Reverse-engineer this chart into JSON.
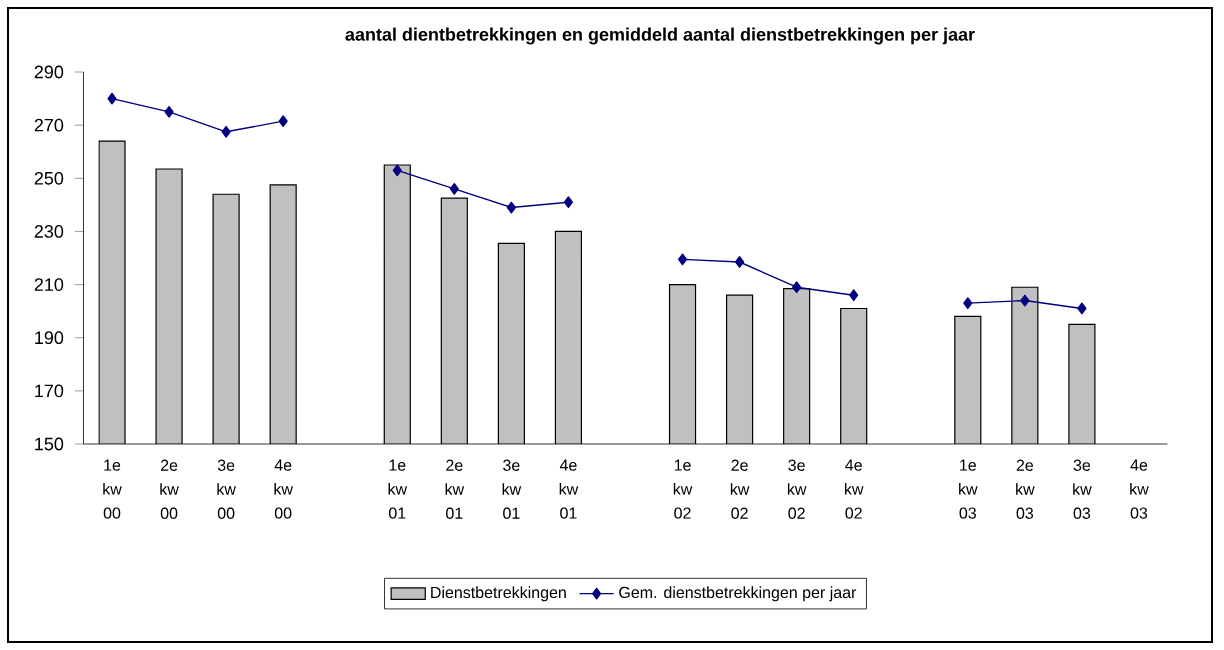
{
  "chart_data": {
    "type": "bar",
    "title": "aantal dientbetrekkingen en gemiddeld aantal dienstbetrekkingen per jaar",
    "categories": [
      "1e kw 00",
      "2e kw 00",
      "3e kw 00",
      "4e kw 00",
      null,
      "1e kw 01",
      "2e kw 01",
      "3e kw 01",
      "4e kw 01",
      null,
      "1e kw 02",
      "2e kw 02",
      "3e kw 02",
      "4e kw 02",
      null,
      "1e kw 03",
      "2e kw 03",
      "3e kw 03",
      "4e kw 03"
    ],
    "series": [
      {
        "name": "Dienstbetrekkingen",
        "color": "#c0c0c0",
        "values": [
          264,
          253.5,
          244,
          247.5,
          null,
          255,
          242.5,
          225.5,
          230,
          null,
          210,
          206,
          208.5,
          201,
          null,
          198,
          209,
          195,
          null
        ]
      },
      {
        "name": "Gem. dienstbetrekkingen per jaar",
        "type": "line",
        "color": "#000080",
        "marker": "diamond",
        "values": [
          280,
          275,
          267.5,
          271.5,
          null,
          253,
          246,
          239,
          241,
          null,
          219.5,
          218.5,
          209,
          206,
          null,
          203,
          204,
          201,
          null
        ]
      }
    ],
    "ylim": [
      150,
      290
    ],
    "yticks": [
      150,
      170,
      190,
      210,
      230,
      250,
      270,
      290
    ],
    "grid": false,
    "legend": "bottom"
  }
}
